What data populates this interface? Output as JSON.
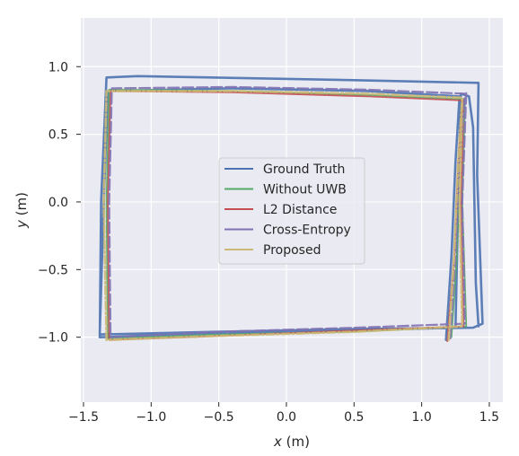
{
  "chart_data": {
    "type": "line",
    "xlabel_var": "x",
    "xlabel_unit": " (m)",
    "ylabel_var": "y",
    "ylabel_unit": " (m)",
    "xlim": [
      -1.52,
      1.6
    ],
    "ylim": [
      -1.48,
      1.36
    ],
    "grid": true,
    "legend_position": "center",
    "xticks": [
      {
        "value": -1.5,
        "label": "−1.5"
      },
      {
        "value": -1.0,
        "label": "−1.0"
      },
      {
        "value": -0.5,
        "label": "−0.5"
      },
      {
        "value": 0.0,
        "label": "0.0"
      },
      {
        "value": 0.5,
        "label": "0.5"
      },
      {
        "value": 1.0,
        "label": "1.0"
      },
      {
        "value": 1.5,
        "label": "1.5"
      }
    ],
    "yticks": [
      {
        "value": 1.0,
        "label": "1.0"
      },
      {
        "value": 0.5,
        "label": "0.5"
      },
      {
        "value": 0.0,
        "label": "0.0"
      },
      {
        "value": -0.5,
        "label": "−0.5"
      },
      {
        "value": -1.0,
        "label": "−1.0"
      }
    ],
    "series": [
      {
        "name": "Ground Truth",
        "color": "#4c72b0",
        "dash": "solid",
        "width": 2.6,
        "points": [
          [
            1.18,
            -1.02
          ],
          [
            1.22,
            -0.4
          ],
          [
            1.25,
            0.3
          ],
          [
            1.28,
            0.78
          ],
          [
            0.6,
            0.82
          ],
          [
            -0.4,
            0.84
          ],
          [
            -1.32,
            0.82
          ],
          [
            -1.35,
            0.0
          ],
          [
            -1.38,
            -0.98
          ],
          [
            -0.5,
            -0.96
          ],
          [
            0.5,
            -0.94
          ],
          [
            1.38,
            -0.93
          ],
          [
            1.45,
            -0.9
          ],
          [
            1.41,
            0.2
          ],
          [
            1.42,
            0.88
          ],
          [
            0.5,
            0.9
          ],
          [
            -1.1,
            0.93
          ],
          [
            -1.33,
            0.92
          ],
          [
            -1.37,
            0.0
          ],
          [
            -1.38,
            -1.0
          ],
          [
            -0.5,
            -0.97
          ],
          [
            0.5,
            -0.95
          ],
          [
            1.25,
            -0.93
          ],
          [
            1.27,
            0.0
          ],
          [
            1.29,
            0.8
          ],
          [
            1.35,
            0.78
          ],
          [
            1.38,
            0.55
          ],
          [
            1.4,
            -0.6
          ],
          [
            1.42,
            -0.92
          ]
        ]
      },
      {
        "name": "Without UWB",
        "color": "#55a868",
        "dash": "solid",
        "width": 1.8,
        "points": [
          [
            1.22,
            -1.0
          ],
          [
            1.26,
            -0.4
          ],
          [
            1.28,
            0.3
          ],
          [
            1.31,
            0.76
          ],
          [
            0.6,
            0.79
          ],
          [
            -0.4,
            0.82
          ],
          [
            -1.31,
            0.83
          ],
          [
            -1.33,
            0.0
          ],
          [
            -1.32,
            -1.01
          ],
          [
            -0.5,
            -0.98
          ],
          [
            0.5,
            -0.96
          ],
          [
            1.33,
            -0.92
          ],
          [
            1.3,
            0.0
          ],
          [
            1.32,
            0.77
          ]
        ]
      },
      {
        "name": "L2 Distance",
        "color": "#c44e52",
        "dash": "solid",
        "width": 1.8,
        "points": [
          [
            1.19,
            -1.03
          ],
          [
            1.24,
            -0.4
          ],
          [
            1.27,
            0.3
          ],
          [
            1.3,
            0.75
          ],
          [
            0.6,
            0.78
          ],
          [
            -0.4,
            0.81
          ],
          [
            -1.3,
            0.82
          ],
          [
            -1.32,
            0.0
          ],
          [
            -1.31,
            -1.02
          ],
          [
            -0.5,
            -0.99
          ],
          [
            0.5,
            -0.95
          ],
          [
            1.31,
            -0.92
          ],
          [
            1.29,
            0.0
          ],
          [
            1.31,
            0.76
          ]
        ]
      },
      {
        "name": "Cross-Entropy",
        "color": "#8172b2",
        "dash": "12 4",
        "width": 2.2,
        "points": [
          [
            1.21,
            -1.01
          ],
          [
            1.25,
            -0.4
          ],
          [
            1.28,
            0.3
          ],
          [
            1.32,
            0.8
          ],
          [
            0.6,
            0.83
          ],
          [
            -0.4,
            0.85
          ],
          [
            -1.29,
            0.84
          ],
          [
            -1.31,
            0.0
          ],
          [
            -1.3,
            -1.0
          ],
          [
            -0.5,
            -0.96
          ],
          [
            0.5,
            -0.93
          ],
          [
            1.32,
            -0.9
          ],
          [
            1.3,
            0.0
          ],
          [
            1.33,
            0.81
          ]
        ]
      },
      {
        "name": "Proposed",
        "color": "#ccb974",
        "dash": "9 3 2 3",
        "width": 2.6,
        "points": [
          [
            1.2,
            -1.02
          ],
          [
            1.24,
            -0.4
          ],
          [
            1.27,
            0.3
          ],
          [
            1.3,
            0.77
          ],
          [
            0.6,
            0.8
          ],
          [
            -0.4,
            0.82
          ],
          [
            -1.33,
            0.82
          ],
          [
            -1.35,
            0.0
          ],
          [
            -1.33,
            -1.02
          ],
          [
            -0.5,
            -0.99
          ],
          [
            0.5,
            -0.96
          ],
          [
            1.3,
            -0.92
          ],
          [
            1.28,
            0.0
          ],
          [
            1.3,
            0.76
          ]
        ]
      }
    ]
  }
}
